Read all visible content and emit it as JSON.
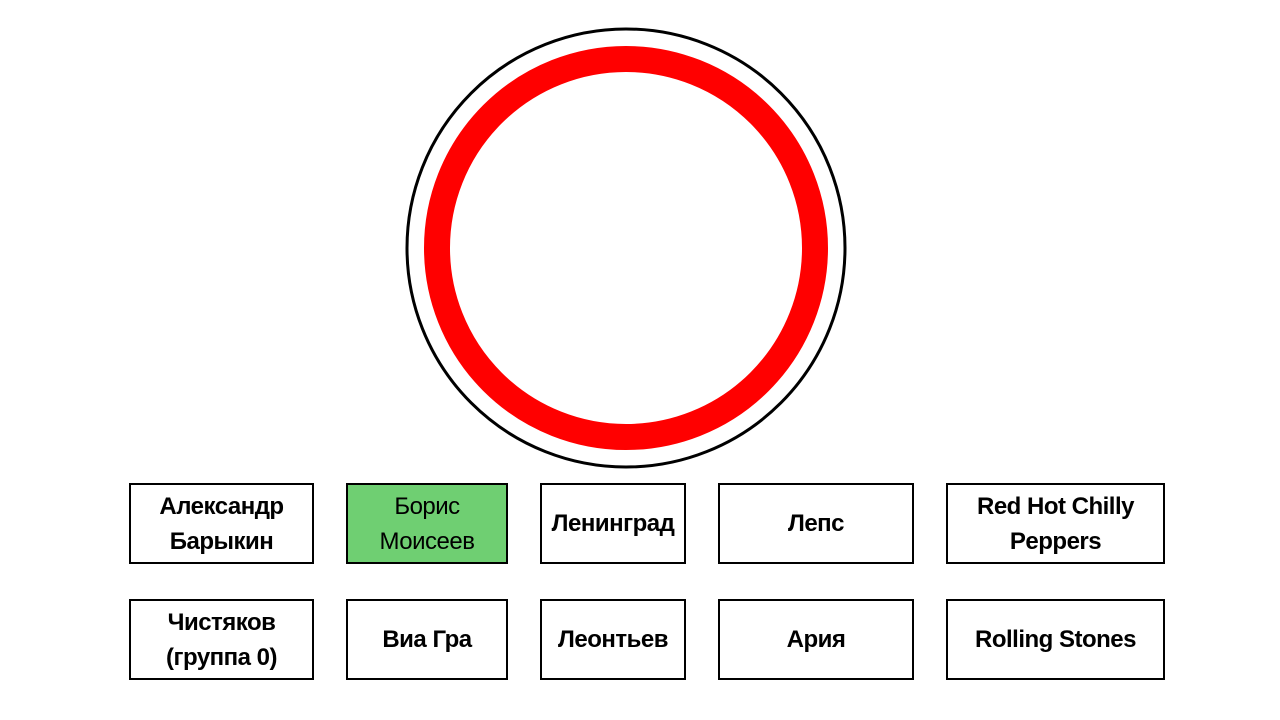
{
  "sign": {
    "icon": "no-vehicles-sign-icon",
    "outer_stroke_color": "#000000",
    "ring_color": "#ff0000",
    "fill_color": "#ffffff"
  },
  "colors": {
    "selected_background": "#6fcf72",
    "button_border": "#000000",
    "button_background": "#ffffff"
  },
  "answers": [
    {
      "label": "Александр Барыкин",
      "selected": false
    },
    {
      "label": "Борис Моисеев",
      "selected": true
    },
    {
      "label": "Ленинград",
      "selected": false
    },
    {
      "label": "Лепс",
      "selected": false
    },
    {
      "label": "Red Hot Chilly Peppers",
      "selected": false
    },
    {
      "label": "Чистяков (группа 0)",
      "selected": false
    },
    {
      "label": "Виа Гра",
      "selected": false
    },
    {
      "label": "Леонтьев",
      "selected": false
    },
    {
      "label": "Ария",
      "selected": false
    },
    {
      "label": "Rolling Stones",
      "selected": false
    }
  ]
}
